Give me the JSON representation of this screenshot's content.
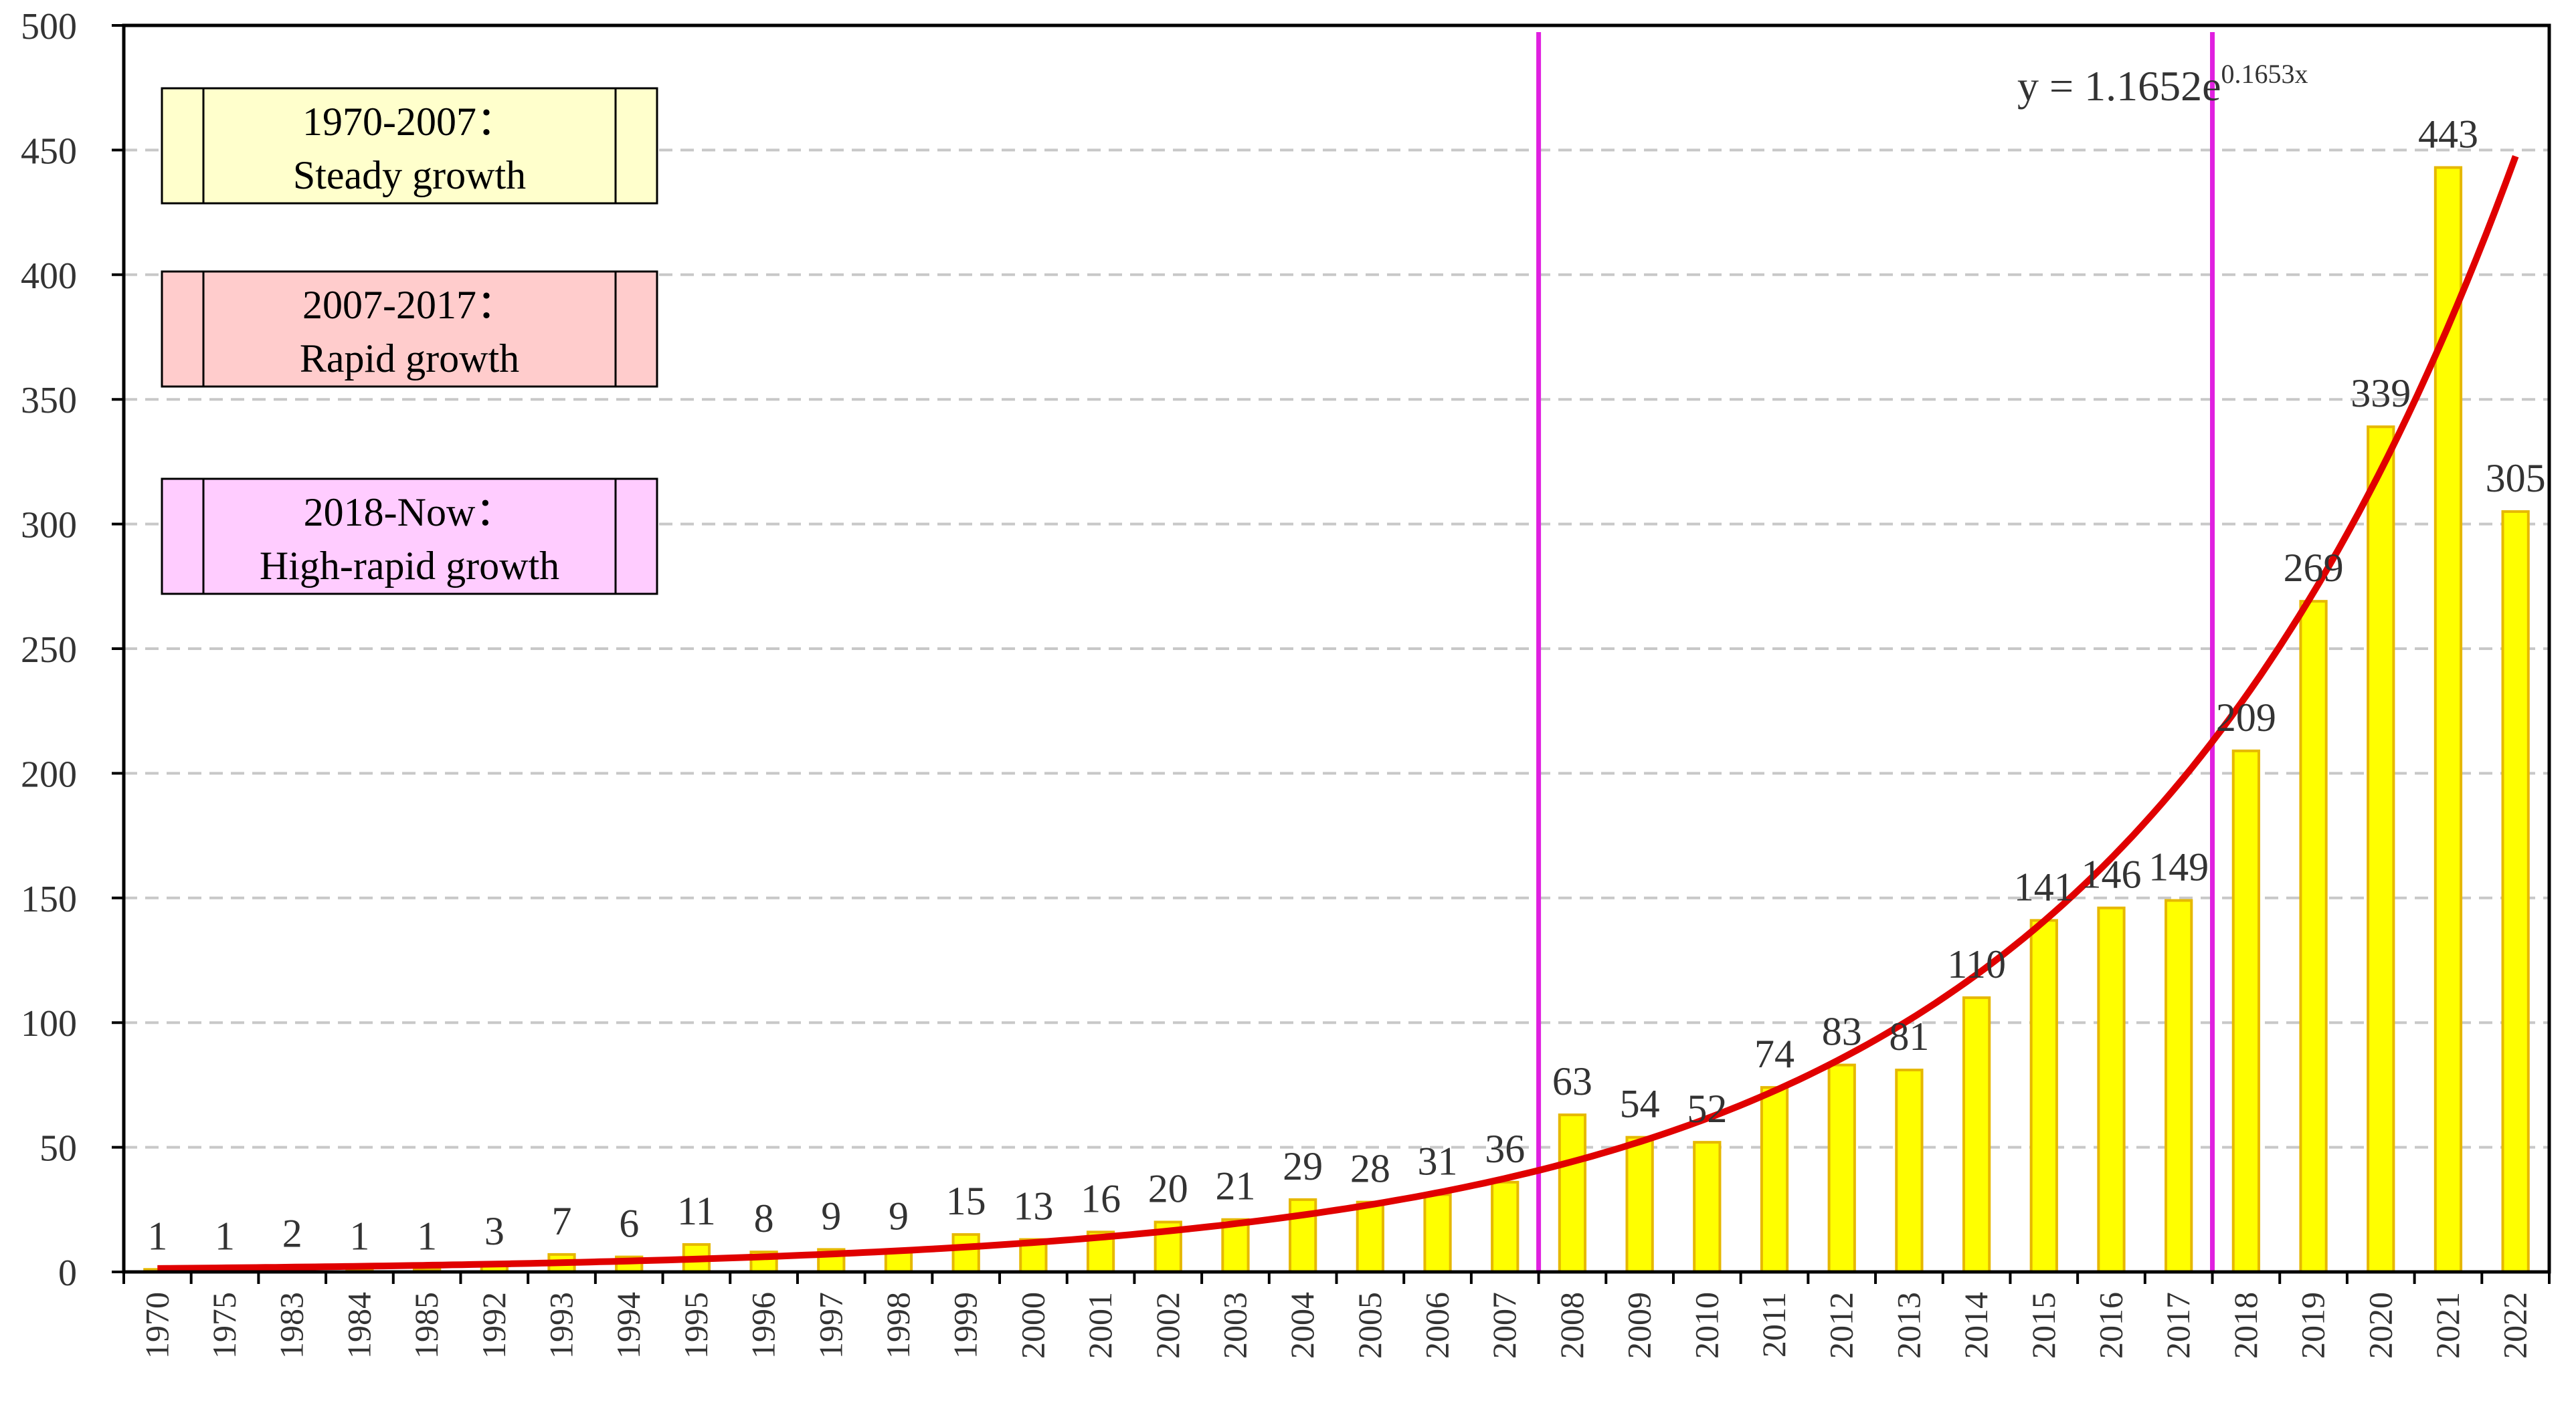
{
  "chart_data": {
    "type": "bar",
    "categories": [
      "1970",
      "1975",
      "1983",
      "1984",
      "1985",
      "1992",
      "1993",
      "1994",
      "1995",
      "1996",
      "1997",
      "1998",
      "1999",
      "2000",
      "2001",
      "2002",
      "2003",
      "2004",
      "2005",
      "2006",
      "2007",
      "2008",
      "2009",
      "2010",
      "2011",
      "2012",
      "2013",
      "2014",
      "2015",
      "2016",
      "2017",
      "2018",
      "2019",
      "2020",
      "2021",
      "2022"
    ],
    "values": [
      1,
      1,
      2,
      1,
      1,
      3,
      7,
      6,
      11,
      8,
      9,
      9,
      15,
      13,
      16,
      20,
      21,
      29,
      28,
      31,
      36,
      63,
      54,
      52,
      74,
      83,
      81,
      110,
      141,
      146,
      149,
      209,
      269,
      339,
      443,
      305
    ],
    "ylim": [
      0,
      500
    ],
    "yticks": [
      "0",
      "50",
      "100",
      "150",
      "200",
      "250",
      "300",
      "350",
      "400",
      "450",
      "500"
    ],
    "grid": true,
    "bar_color": "#ffff00",
    "bar_edge_color": "#e6b800",
    "trendline": {
      "type": "exponential",
      "a": 1.1652,
      "b": 0.1653,
      "color": "#e00000",
      "equation_prefix": "y = 1.1652e",
      "equation_exponent": "0.1653x"
    },
    "vertical_lines": [
      {
        "at": "2008",
        "color": "#e020e0"
      },
      {
        "at": "2018",
        "color": "#e020e0"
      }
    ],
    "phases": [
      {
        "line1": "1970-2007：",
        "line2": "Steady growth",
        "color": "#ffffcc"
      },
      {
        "line1": "2007-2017：",
        "line2": "Rapid growth",
        "color": "#ffcccc"
      },
      {
        "line1": "2018-Now：",
        "line2": "High-rapid growth",
        "color": "#ffccff"
      }
    ]
  }
}
